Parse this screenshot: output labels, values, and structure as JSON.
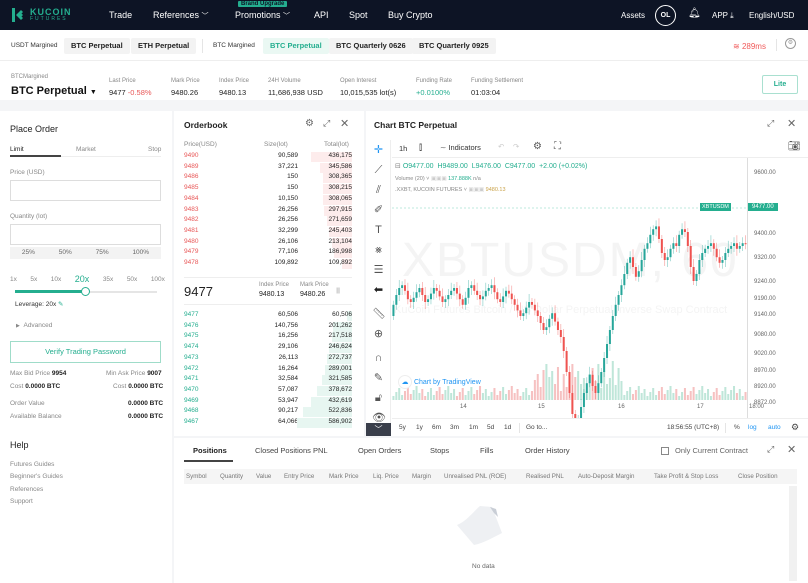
{
  "topnav": {
    "logo_line1": "KUCOIN",
    "logo_line2": "FUTURES",
    "items": [
      "Trade",
      "References",
      "Promotions",
      "API",
      "Spot",
      "Buy Crypto"
    ],
    "brand_badge": "Brand Upgrade",
    "assets": "Assets",
    "avatar": "OL",
    "app": "APP",
    "lang": "English/USD"
  },
  "subnav": {
    "usdt_label": "USDT Margined",
    "usdt_tabs": [
      "BTC Perpetual",
      "ETH Perpetual"
    ],
    "btc_label": "BTC Margined",
    "btc_tabs": [
      "BTC Perpetual",
      "BTC Quarterly 0626",
      "BTC Quarterly 0925"
    ],
    "latency": "289ms"
  },
  "info": {
    "margin_label": "BTCMargined",
    "contract": "BTC Perpetual",
    "last_price_label": "Last Price",
    "last_price": "9477",
    "last_change": "-0.58%",
    "mark_price_label": "Mark Price",
    "mark_price": "9480.26",
    "index_price_label": "Index Price",
    "index_price": "9480.13",
    "volume_label": "24H Volume",
    "volume": "11,686,938 USD",
    "oi_label": "Open Interest",
    "oi": "10,015,535 lot(s)",
    "funding_rate_label": "Funding Rate",
    "funding_rate": "+0.0100%",
    "settlement_label": "Funding Settlement",
    "settlement": "01:03:04",
    "lite": "Lite"
  },
  "place_order": {
    "title": "Place Order",
    "tabs": [
      "Limit",
      "Market",
      "Stop"
    ],
    "price_label": "Price (USD)",
    "qty_label": "Quantity (lot)",
    "pct": [
      "25%",
      "50%",
      "75%",
      "100%"
    ],
    "leverage_opts": [
      "1x",
      "5x",
      "10x",
      "20x",
      "35x",
      "50x",
      "100x"
    ],
    "leverage_label": "Leverage: 20x",
    "advanced": "Advanced",
    "verify": "Verify Trading Password",
    "max_bid_label": "Max Bid Price",
    "max_bid": "9954",
    "min_ask_label": "Min Ask Price",
    "min_ask": "9007",
    "cost_label": "Cost",
    "cost_left": "0.0000 BTC",
    "cost_right": "0.0000 BTC",
    "order_value_label": "Order Value",
    "order_value": "0.0000 BTC",
    "avail_label": "Available Balance",
    "avail": "0.0000 BTC"
  },
  "help": {
    "title": "Help",
    "links": [
      "Futures Guides",
      "Beginner's Guides",
      "References",
      "Support"
    ]
  },
  "orderbook": {
    "title": "Orderbook",
    "headers": [
      "Price(USD)",
      "Size(lot)",
      "Total(lot)"
    ],
    "asks": [
      [
        "9490",
        "90,589",
        "436,175",
        74
      ],
      [
        "9489",
        "37,221",
        "345,586",
        59
      ],
      [
        "9486",
        "150",
        "308,365",
        53
      ],
      [
        "9485",
        "150",
        "308,215",
        53
      ],
      [
        "9484",
        "10,150",
        "308,065",
        53
      ],
      [
        "9483",
        "26,256",
        "297,915",
        51
      ],
      [
        "9482",
        "26,256",
        "271,659",
        46
      ],
      [
        "9481",
        "32,299",
        "245,403",
        42
      ],
      [
        "9480",
        "26,106",
        "213,104",
        36
      ],
      [
        "9479",
        "77,106",
        "186,998",
        32
      ],
      [
        "9478",
        "109,892",
        "109,892",
        19
      ]
    ],
    "last": "9477",
    "index_label": "Index Price",
    "index": "9480.13",
    "mark_label": "Mark Price",
    "mark": "9480.26",
    "bids": [
      [
        "9477",
        "60,506",
        "60,506",
        10
      ],
      [
        "9476",
        "140,756",
        "201,262",
        34
      ],
      [
        "9475",
        "16,256",
        "217,518",
        37
      ],
      [
        "9474",
        "29,106",
        "246,624",
        42
      ],
      [
        "9473",
        "26,113",
        "272,737",
        46
      ],
      [
        "9472",
        "16,264",
        "289,001",
        49
      ],
      [
        "9471",
        "32,584",
        "321,585",
        55
      ],
      [
        "9470",
        "57,087",
        "378,672",
        64
      ],
      [
        "9469",
        "53,947",
        "432,619",
        74
      ],
      [
        "9468",
        "90,217",
        "522,836",
        89
      ],
      [
        "9467",
        "64,066",
        "586,902",
        100
      ]
    ]
  },
  "chart": {
    "title": "Chart BTC Perpetual",
    "interval": "1h",
    "indicators": "Indicators",
    "ohlc": {
      "o": "O9477.00",
      "h": "H9489.00",
      "l": "L9476.00",
      "c": "C9477.00",
      "chg": "+2.00 (+0.02%)"
    },
    "volume_label": "Volume (20)",
    "volume_val": "137.888K",
    "volume_na": "n/a",
    "index_label": ".XXBT, KUCOIN FUTURES",
    "index_val": "9480.13",
    "watermark": "XBTUSDM, 60",
    "watermark_sub": "KuCoin Futures Bitcoin / US Dollar Perpetual Inverse Swap Contract",
    "tv_credit": "Chart by TradingView",
    "price_tag_symbol": "XBTUSDM",
    "price_tag": "9477.00",
    "price_ticks": [
      "9600.00",
      "9500.00",
      "9400.00",
      "9320.00",
      "9240.00",
      "9190.00",
      "9140.00",
      "9080.00",
      "9020.00",
      "8970.00",
      "8920.00",
      "8872.00"
    ],
    "time_ticks": [
      "14",
      "15",
      "16",
      "17",
      "18:00"
    ],
    "ranges": [
      "5y",
      "1y",
      "6m",
      "3m",
      "1m",
      "5d",
      "1d"
    ],
    "goto": "Go to...",
    "clock": "18:56:55 (UTC+8)",
    "pct": "%",
    "log": "log",
    "auto": "auto"
  },
  "bottom": {
    "tabs": [
      "Positions",
      "Closed Positions PNL",
      "Open Orders",
      "Stops",
      "Fills",
      "Order History"
    ],
    "only_current": "Only Current Contract",
    "columns": [
      "Symbol",
      "Quantity",
      "Value",
      "Entry Price",
      "Mark Price",
      "Liq. Price",
      "Margin",
      "Unrealised PNL (ROE)",
      "Realised PNL",
      "Auto-Deposit Margin",
      "Take Profit & Stop Loss",
      "Close Position"
    ],
    "empty": "No data"
  },
  "colors": {
    "accent": "#24ae8f",
    "down": "#e85757",
    "nav_bg": "#0d1425"
  }
}
